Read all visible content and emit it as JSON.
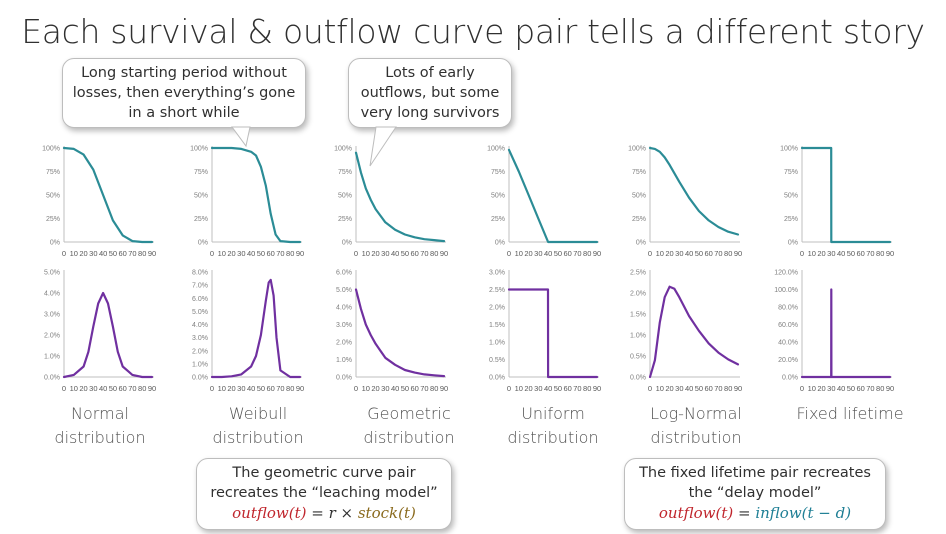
{
  "title": "Each survival & outflow curve pair tells a different story",
  "callouts": {
    "top1": [
      "Long starting period without",
      "losses, then everything’s gone",
      "in a short while"
    ],
    "top2": [
      "Lots of early",
      "outflows, but some",
      "very long survivors"
    ],
    "bot1": {
      "lines": [
        "The geometric curve pair",
        "recreates the “leaching model”"
      ],
      "formula": {
        "lhs": "outflow(t)",
        "eq": " = ",
        "r": "r",
        "times": " × ",
        "rhs": "stock(t)"
      }
    },
    "bot2": {
      "lines": [
        "The fixed lifetime pair recreates",
        "the “delay model”"
      ],
      "formula": {
        "lhs": "outflow(t)",
        "eq": " = ",
        "rhs": "inflow(t − d)"
      }
    }
  },
  "distributions": [
    {
      "line1": "Normal",
      "line2": "distribution"
    },
    {
      "line1": "Weibull",
      "line2": "distribution"
    },
    {
      "line1": "Geometric",
      "line2": "distribution"
    },
    {
      "line1": "Uniform",
      "line2": "distribution"
    },
    {
      "line1": "Log-Normal",
      "line2": "distribution"
    },
    {
      "line1": "Fixed lifetime",
      "line2": ""
    }
  ],
  "colors": {
    "survival": "#2b8c96",
    "outflow": "#7030a0",
    "axis": "#bfbfbf",
    "tick_text": "#7f7f7f"
  },
  "chart_data": [
    {
      "type": "line",
      "name": "Normal survival",
      "x": [
        0,
        10,
        20,
        30,
        40,
        50,
        60,
        70,
        80,
        90
      ],
      "values": [
        1.0,
        0.99,
        0.93,
        0.77,
        0.5,
        0.23,
        0.07,
        0.01,
        0.0,
        0.0
      ],
      "yticks": [
        "100%",
        "75%",
        "50%",
        "25%",
        "0%"
      ],
      "ylim": [
        0,
        1
      ],
      "xticks": [
        "0",
        "10",
        "20",
        "30",
        "40",
        "50",
        "60",
        "70",
        "80",
        "90"
      ]
    },
    {
      "type": "line",
      "name": "Weibull survival",
      "x": [
        0,
        10,
        20,
        30,
        40,
        45,
        50,
        55,
        60,
        65,
        70,
        80,
        90
      ],
      "values": [
        1.0,
        1.0,
        1.0,
        0.99,
        0.96,
        0.92,
        0.8,
        0.6,
        0.3,
        0.08,
        0.01,
        0.0,
        0.0
      ],
      "yticks": [
        "100%",
        "75%",
        "50%",
        "25%",
        "0%"
      ],
      "ylim": [
        0,
        1
      ],
      "xticks": [
        "0",
        "10",
        "20",
        "30",
        "40",
        "50",
        "60",
        "70",
        "80",
        "90"
      ]
    },
    {
      "type": "line",
      "name": "Geometric survival",
      "x": [
        0,
        5,
        10,
        15,
        20,
        30,
        40,
        50,
        60,
        70,
        80,
        90
      ],
      "values": [
        0.95,
        0.74,
        0.57,
        0.45,
        0.35,
        0.21,
        0.13,
        0.08,
        0.05,
        0.03,
        0.02,
        0.01
      ],
      "yticks": [
        "100%",
        "75%",
        "50%",
        "25%",
        "0%"
      ],
      "ylim": [
        0,
        1
      ],
      "xticks": [
        "0",
        "10",
        "20",
        "30",
        "40",
        "50",
        "60",
        "70",
        "80",
        "90"
      ]
    },
    {
      "type": "line",
      "name": "Uniform survival",
      "x": [
        0,
        10,
        20,
        30,
        40,
        50,
        60,
        70,
        80,
        90
      ],
      "values": [
        0.98,
        0.75,
        0.5,
        0.25,
        0.0,
        0.0,
        0.0,
        0.0,
        0.0,
        0.0
      ],
      "yticks": [
        "100%",
        "75%",
        "50%",
        "25%",
        "0%"
      ],
      "ylim": [
        0,
        1
      ],
      "xticks": [
        "0",
        "10",
        "20",
        "30",
        "40",
        "50",
        "60",
        "70",
        "80",
        "90"
      ]
    },
    {
      "type": "line",
      "name": "Log-Normal survival",
      "x": [
        0,
        5,
        10,
        15,
        20,
        30,
        40,
        50,
        60,
        70,
        80,
        90
      ],
      "values": [
        1.0,
        0.99,
        0.96,
        0.9,
        0.82,
        0.64,
        0.47,
        0.33,
        0.23,
        0.16,
        0.11,
        0.08
      ],
      "yticks": [
        "100%",
        "75%",
        "50%",
        "25%",
        "0%"
      ],
      "ylim": [
        0,
        1
      ],
      "xticks": [
        "0",
        "10",
        "20",
        "30",
        "40",
        "50",
        "60",
        "70",
        "80",
        "90"
      ]
    },
    {
      "type": "line",
      "name": "Fixed lifetime survival",
      "x": [
        0,
        29.9,
        30,
        40,
        50,
        60,
        70,
        80,
        90
      ],
      "values": [
        1.0,
        1.0,
        0.0,
        0.0,
        0.0,
        0.0,
        0.0,
        0.0,
        0.0
      ],
      "yticks": [
        "100%",
        "75%",
        "50%",
        "25%",
        "0%"
      ],
      "ylim": [
        0,
        1
      ],
      "xticks": [
        "0",
        "10",
        "20",
        "30",
        "40",
        "50",
        "60",
        "70",
        "80",
        "90"
      ]
    },
    {
      "type": "line",
      "name": "Normal outflow",
      "x": [
        0,
        10,
        20,
        25,
        30,
        35,
        40,
        45,
        50,
        55,
        60,
        70,
        80,
        90
      ],
      "values": [
        0.0,
        0.1,
        0.5,
        1.2,
        2.4,
        3.5,
        4.0,
        3.5,
        2.4,
        1.2,
        0.5,
        0.1,
        0.0,
        0.0
      ],
      "yticks": [
        "5.0%",
        "4.0%",
        "3.0%",
        "2.0%",
        "1.0%",
        "0.0%"
      ],
      "ylim": [
        0,
        5
      ],
      "xticks": [
        "0",
        "10",
        "20",
        "30",
        "40",
        "50",
        "60",
        "70",
        "80",
        "90"
      ]
    },
    {
      "type": "line",
      "name": "Weibull outflow",
      "x": [
        0,
        10,
        20,
        30,
        40,
        45,
        50,
        55,
        58,
        60,
        63,
        66,
        70,
        80,
        90
      ],
      "values": [
        0.0,
        0.0,
        0.05,
        0.2,
        0.8,
        1.6,
        3.2,
        5.8,
        7.2,
        7.4,
        6.2,
        3.0,
        0.5,
        0.0,
        0.0
      ],
      "yticks": [
        "8.0%",
        "7.0%",
        "6.0%",
        "5.0%",
        "4.0%",
        "3.0%",
        "2.0%",
        "1.0%",
        "0.0%"
      ],
      "ylim": [
        0,
        8
      ],
      "xticks": [
        "0",
        "10",
        "20",
        "30",
        "40",
        "50",
        "60",
        "70",
        "80",
        "90"
      ]
    },
    {
      "type": "line",
      "name": "Geometric outflow",
      "x": [
        0,
        5,
        10,
        15,
        20,
        30,
        40,
        50,
        60,
        70,
        80,
        90
      ],
      "values": [
        5.0,
        3.9,
        3.0,
        2.4,
        1.9,
        1.1,
        0.7,
        0.4,
        0.25,
        0.15,
        0.1,
        0.05
      ],
      "yticks": [
        "6.0%",
        "5.0%",
        "4.0%",
        "3.0%",
        "2.0%",
        "1.0%",
        "0.0%"
      ],
      "ylim": [
        0,
        6
      ],
      "xticks": [
        "0",
        "10",
        "20",
        "30",
        "40",
        "50",
        "60",
        "70",
        "80",
        "90"
      ]
    },
    {
      "type": "line",
      "name": "Uniform outflow",
      "x": [
        0,
        39.9,
        40,
        50,
        60,
        70,
        80,
        90
      ],
      "values": [
        2.5,
        2.5,
        0.0,
        0.0,
        0.0,
        0.0,
        0.0,
        0.0
      ],
      "yticks": [
        "3.0%",
        "2.5%",
        "2.0%",
        "1.5%",
        "1.0%",
        "0.5%",
        "0.0%"
      ],
      "ylim": [
        0,
        3
      ],
      "xticks": [
        "0",
        "10",
        "20",
        "30",
        "40",
        "50",
        "60",
        "70",
        "80",
        "90"
      ]
    },
    {
      "type": "line",
      "name": "Log-Normal outflow",
      "x": [
        0,
        5,
        10,
        15,
        20,
        25,
        30,
        40,
        50,
        60,
        70,
        80,
        90
      ],
      "values": [
        0.0,
        0.4,
        1.3,
        1.9,
        2.15,
        2.1,
        1.9,
        1.45,
        1.1,
        0.8,
        0.58,
        0.42,
        0.3
      ],
      "yticks": [
        "2.5%",
        "2.0%",
        "1.5%",
        "1.0%",
        "0.5%",
        "0.0%"
      ],
      "ylim": [
        0,
        2.5
      ],
      "xticks": [
        "0",
        "10",
        "20",
        "30",
        "40",
        "50",
        "60",
        "70",
        "80",
        "90"
      ]
    },
    {
      "type": "line",
      "name": "Fixed lifetime outflow",
      "x": [
        0,
        29.9,
        30,
        30.1,
        40,
        50,
        60,
        70,
        80,
        90
      ],
      "values": [
        0.0,
        0.0,
        100.0,
        0.0,
        0.0,
        0.0,
        0.0,
        0.0,
        0.0,
        0.0
      ],
      "yticks": [
        "120.0%",
        "100.0%",
        "80.0%",
        "60.0%",
        "40.0%",
        "20.0%",
        "0.0%"
      ],
      "ylim": [
        0,
        120
      ],
      "xticks": [
        "0",
        "10",
        "20",
        "30",
        "40",
        "50",
        "60",
        "70",
        "80",
        "90"
      ]
    }
  ]
}
